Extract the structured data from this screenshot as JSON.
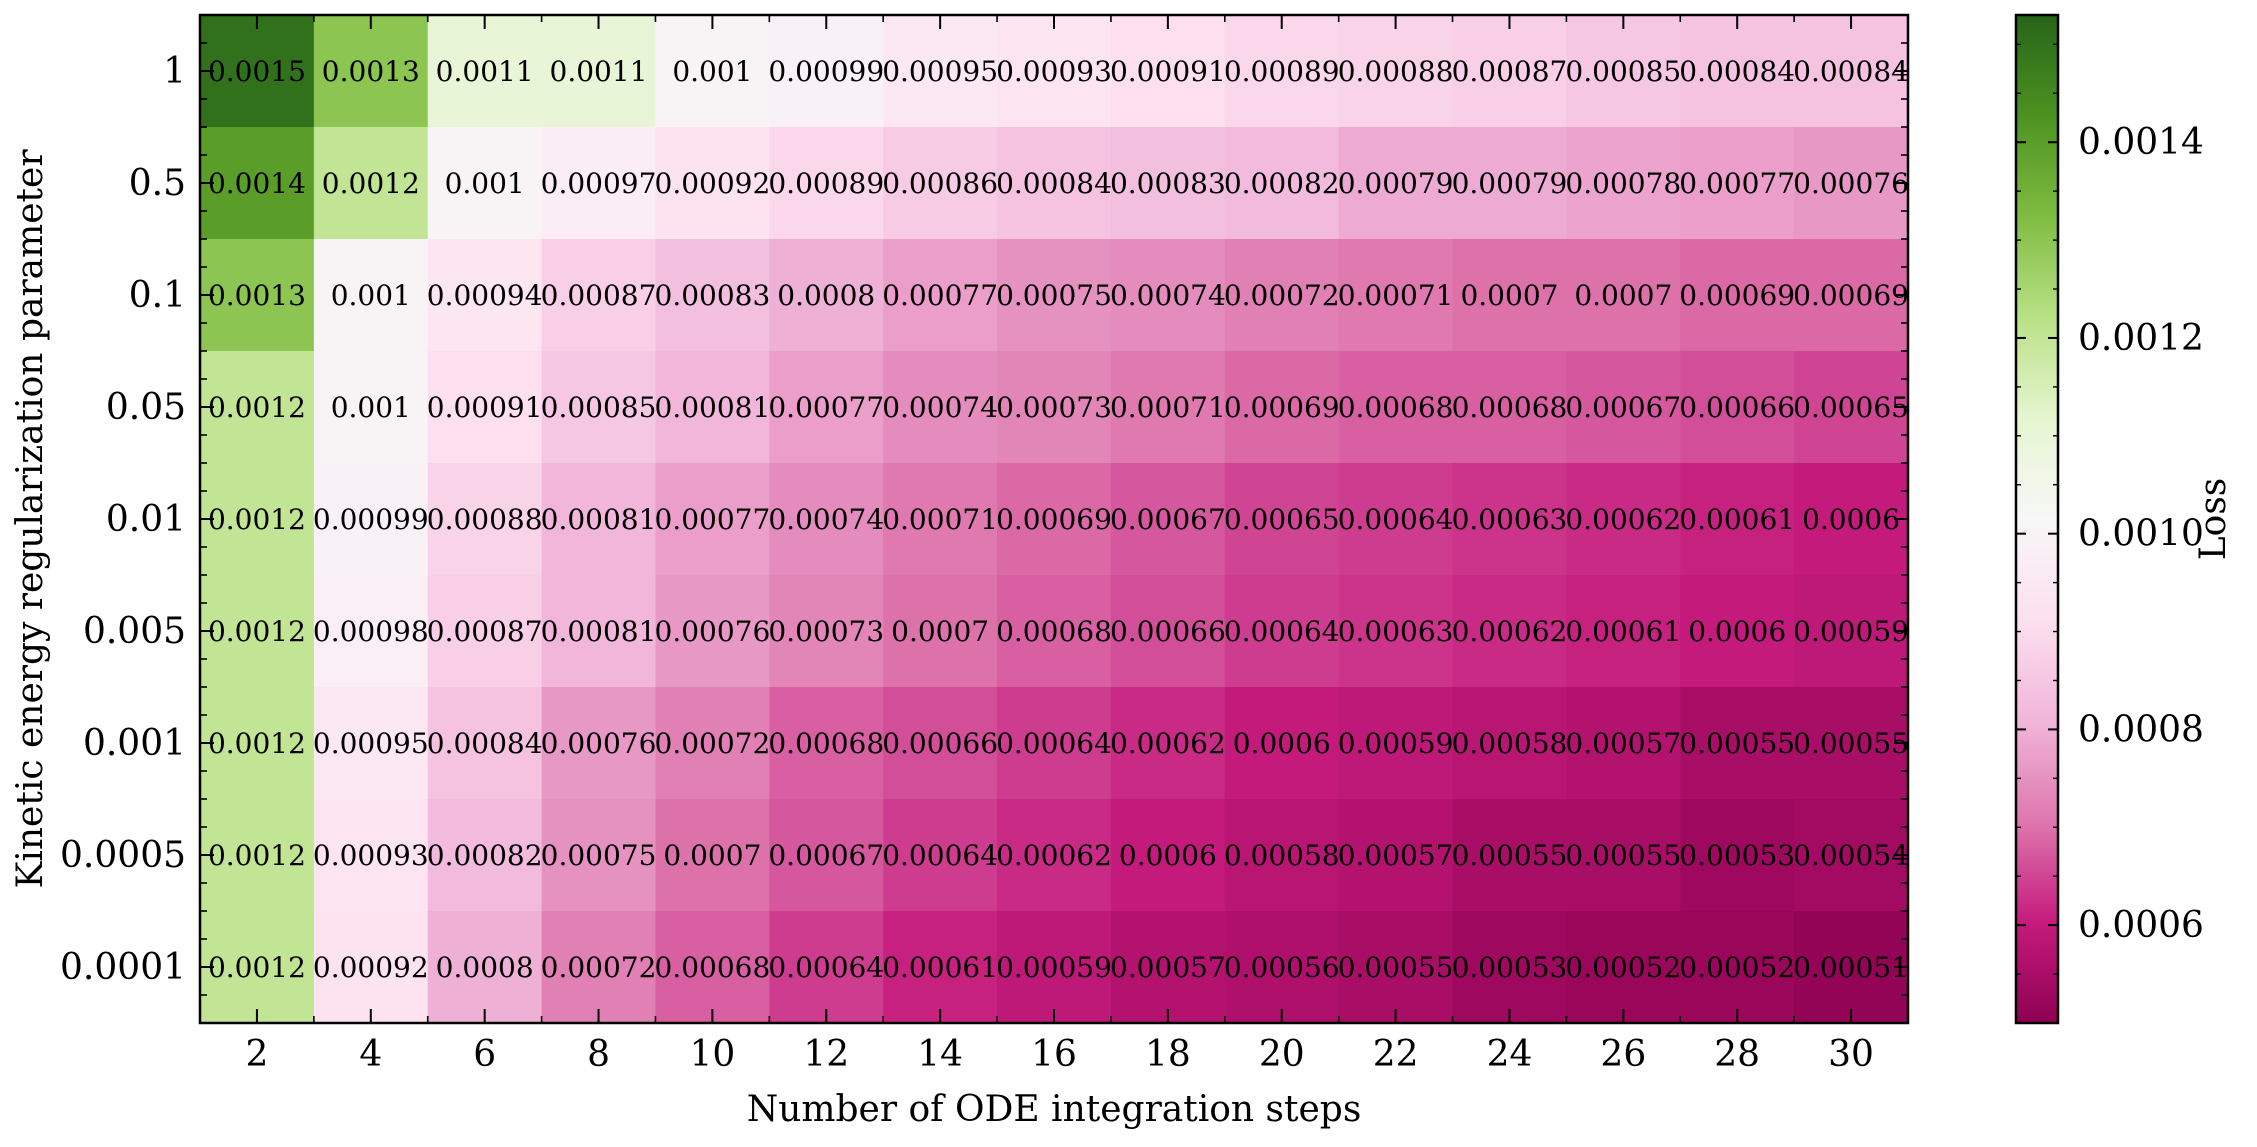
{
  "chart_data": {
    "type": "heatmap",
    "xlabel": "Number of ODE integration steps",
    "ylabel": "Kinetic energy regularization parameter",
    "colorbar_label": "Loss",
    "x": [
      2,
      4,
      6,
      8,
      10,
      12,
      14,
      16,
      18,
      20,
      22,
      24,
      26,
      28,
      30
    ],
    "y": [
      "1",
      "0.5",
      "0.1",
      "0.05",
      "0.01",
      "0.005",
      "0.001",
      "0.0005",
      "0.0001"
    ],
    "values": [
      [
        0.0015,
        0.0013,
        0.0011,
        0.0011,
        0.001,
        0.00099,
        0.00095,
        0.00093,
        0.00091,
        0.00089,
        0.00088,
        0.00087,
        0.00085,
        0.00084,
        0.00084
      ],
      [
        0.0014,
        0.0012,
        0.001,
        0.00097,
        0.00092,
        0.00089,
        0.00086,
        0.00084,
        0.00083,
        0.00082,
        0.00079,
        0.00079,
        0.00078,
        0.00077,
        0.00076
      ],
      [
        0.0013,
        0.001,
        0.00094,
        0.00087,
        0.00083,
        0.0008,
        0.00077,
        0.00075,
        0.00074,
        0.00072,
        0.00071,
        0.0007,
        0.0007,
        0.00069,
        0.00069
      ],
      [
        0.0012,
        0.001,
        0.00091,
        0.00085,
        0.00081,
        0.00077,
        0.00074,
        0.00073,
        0.00071,
        0.00069,
        0.00068,
        0.00068,
        0.00067,
        0.00066,
        0.00065
      ],
      [
        0.0012,
        0.00099,
        0.00088,
        0.00081,
        0.00077,
        0.00074,
        0.00071,
        0.00069,
        0.00067,
        0.00065,
        0.00064,
        0.00063,
        0.00062,
        0.00061,
        0.0006
      ],
      [
        0.0012,
        0.00098,
        0.00087,
        0.00081,
        0.00076,
        0.00073,
        0.0007,
        0.00068,
        0.00066,
        0.00064,
        0.00063,
        0.00062,
        0.00061,
        0.0006,
        0.00059
      ],
      [
        0.0012,
        0.00095,
        0.00084,
        0.00076,
        0.00072,
        0.00068,
        0.00066,
        0.00064,
        0.00062,
        0.0006,
        0.00059,
        0.00058,
        0.00057,
        0.00055,
        0.00055
      ],
      [
        0.0012,
        0.00093,
        0.00082,
        0.00075,
        0.0007,
        0.00067,
        0.00064,
        0.00062,
        0.0006,
        0.00058,
        0.00057,
        0.00055,
        0.00055,
        0.00053,
        0.00054
      ],
      [
        0.0012,
        0.00092,
        0.0008,
        0.00072,
        0.00068,
        0.00064,
        0.00061,
        0.00059,
        0.00057,
        0.00056,
        0.00055,
        0.00053,
        0.00052,
        0.00052,
        0.00051
      ]
    ],
    "labels": [
      [
        "0.0015",
        "0.0013",
        "0.0011",
        "0.0011",
        "0.001",
        "0.00099",
        "0.00095",
        "0.00093",
        "0.00091",
        "0.00089",
        "0.00088",
        "0.00087",
        "0.00085",
        "0.00084",
        "0.00084"
      ],
      [
        "0.0014",
        "0.0012",
        "0.001",
        "0.00097",
        "0.00092",
        "0.00089",
        "0.00086",
        "0.00084",
        "0.00083",
        "0.00082",
        "0.00079",
        "0.00079",
        "0.00078",
        "0.00077",
        "0.00076"
      ],
      [
        "0.0013",
        "0.001",
        "0.00094",
        "0.00087",
        "0.00083",
        "0.0008",
        "0.00077",
        "0.00075",
        "0.00074",
        "0.00072",
        "0.00071",
        "0.0007",
        "0.0007",
        "0.00069",
        "0.00069"
      ],
      [
        "0.0012",
        "0.001",
        "0.00091",
        "0.00085",
        "0.00081",
        "0.00077",
        "0.00074",
        "0.00073",
        "0.00071",
        "0.00069",
        "0.00068",
        "0.00068",
        "0.00067",
        "0.00066",
        "0.00065"
      ],
      [
        "0.0012",
        "0.00099",
        "0.00088",
        "0.00081",
        "0.00077",
        "0.00074",
        "0.00071",
        "0.00069",
        "0.00067",
        "0.00065",
        "0.00064",
        "0.00063",
        "0.00062",
        "0.00061",
        "0.0006"
      ],
      [
        "0.0012",
        "0.00098",
        "0.00087",
        "0.00081",
        "0.00076",
        "0.00073",
        "0.0007",
        "0.00068",
        "0.00066",
        "0.00064",
        "0.00063",
        "0.00062",
        "0.00061",
        "0.0006",
        "0.00059"
      ],
      [
        "0.0012",
        "0.00095",
        "0.00084",
        "0.00076",
        "0.00072",
        "0.00068",
        "0.00066",
        "0.00064",
        "0.00062",
        "0.0006",
        "0.00059",
        "0.00058",
        "0.00057",
        "0.00055",
        "0.00055"
      ],
      [
        "0.0012",
        "0.00093",
        "0.00082",
        "0.00075",
        "0.0007",
        "0.00067",
        "0.00064",
        "0.00062",
        "0.0006",
        "0.00058",
        "0.00057",
        "0.00055",
        "0.00055",
        "0.00053",
        "0.00054"
      ],
      [
        "0.0012",
        "0.00092",
        "0.0008",
        "0.00072",
        "0.00068",
        "0.00064",
        "0.00061",
        "0.00059",
        "0.00057",
        "0.00056",
        "0.00055",
        "0.00053",
        "0.00052",
        "0.00052",
        "0.00051"
      ]
    ],
    "colorbar_range": [
      0.0005,
      0.00153
    ],
    "colorbar_ticks": [
      0.0006,
      0.0008,
      0.001,
      0.0012,
      0.0014
    ],
    "colorbar_tick_labels": [
      "0.0006",
      "0.0008",
      "0.0010",
      "0.0012",
      "0.0014"
    ],
    "colormap": [
      "#8e0152",
      "#c51b7d",
      "#de77ae",
      "#f1b6da",
      "#fde0ef",
      "#f7f7f7",
      "#e6f5d0",
      "#b8e186",
      "#7fbc41",
      "#4d9221",
      "#276419"
    ],
    "grid": false
  }
}
